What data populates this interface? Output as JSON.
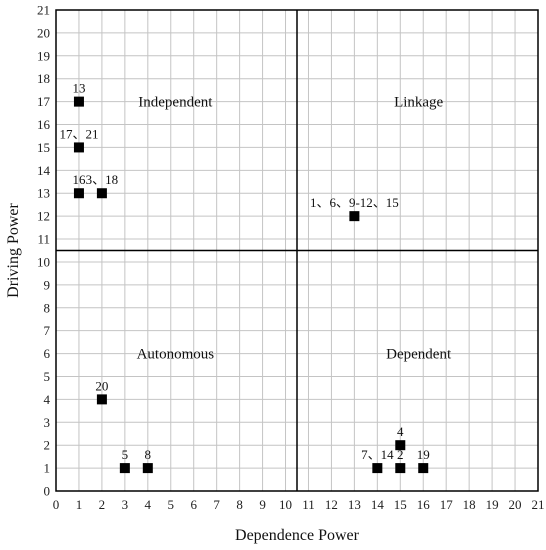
{
  "chart_data": {
    "type": "scatter",
    "title": "",
    "xlabel": "Dependence Power",
    "ylabel": "Driving Power",
    "xlim": [
      0,
      21
    ],
    "ylim": [
      0,
      21
    ],
    "x_ticks": [
      "0",
      "1",
      "2",
      "3",
      "4",
      "5",
      "6",
      "7",
      "8",
      "9",
      "10",
      "11",
      "12",
      "13",
      "14",
      "15",
      "16",
      "17",
      "18",
      "19",
      "20",
      "21"
    ],
    "y_ticks": [
      "0",
      "1",
      "2",
      "3",
      "4",
      "5",
      "6",
      "7",
      "8",
      "9",
      "10",
      "11",
      "12",
      "13",
      "14",
      "15",
      "16",
      "17",
      "18",
      "19",
      "20",
      "21"
    ],
    "grid": true,
    "divider": {
      "x": 10.5,
      "y": 10.5
    },
    "quadrants": [
      {
        "label": "Independent",
        "x": 5.2,
        "y": 17
      },
      {
        "label": "Linkage",
        "x": 15.8,
        "y": 17
      },
      {
        "label": "Autonomous",
        "x": 5.2,
        "y": 6
      },
      {
        "label": "Dependent",
        "x": 15.8,
        "y": 6
      }
    ],
    "points": [
      {
        "x": 1,
        "y": 17,
        "label": "13"
      },
      {
        "x": 1,
        "y": 15,
        "label": "17、21"
      },
      {
        "x": 1,
        "y": 13,
        "label": "16"
      },
      {
        "x": 2,
        "y": 13,
        "label": "3、18"
      },
      {
        "x": 13,
        "y": 12,
        "label": "1、6、9-12、15"
      },
      {
        "x": 2,
        "y": 4,
        "label": "20"
      },
      {
        "x": 3,
        "y": 1,
        "label": "5"
      },
      {
        "x": 4,
        "y": 1,
        "label": "8"
      },
      {
        "x": 15,
        "y": 2,
        "label": "4"
      },
      {
        "x": 14,
        "y": 1,
        "label": "7、14"
      },
      {
        "x": 15,
        "y": 1,
        "label": "2"
      },
      {
        "x": 16,
        "y": 1,
        "label": "19"
      }
    ]
  }
}
